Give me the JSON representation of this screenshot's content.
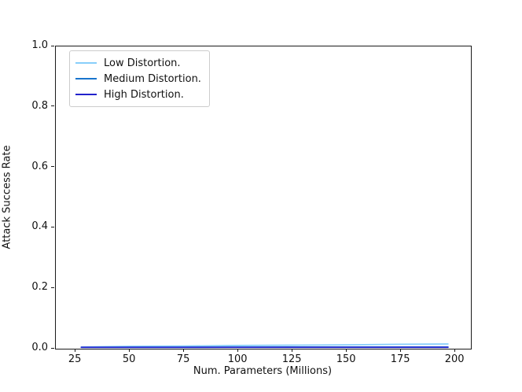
{
  "chart_data": {
    "type": "line",
    "title": "",
    "xlabel": "Num. Parameters (Millions)",
    "ylabel": "Attack Success Rate",
    "xlim": [
      15.9,
      207.2
    ],
    "ylim": [
      0.0,
      1.0
    ],
    "x_ticks": [
      25,
      50,
      75,
      100,
      125,
      150,
      175,
      200
    ],
    "y_ticks": [
      "0.0",
      "0.2",
      "0.4",
      "0.6",
      "0.8",
      "1.0"
    ],
    "grid": false,
    "legend_position": "upper left",
    "series": [
      {
        "name": "Low Distortion.",
        "color": "#87CEFA",
        "x": [
          28,
          50,
          75,
          100,
          125,
          150,
          175,
          197
        ],
        "y": [
          0.003,
          0.005,
          0.006,
          0.008,
          0.009,
          0.01,
          0.012,
          0.013
        ]
      },
      {
        "name": "Medium Distortion.",
        "color": "#1874CD",
        "x": [
          28,
          75,
          125,
          197
        ],
        "y": [
          0.002,
          0.002,
          0.003,
          0.003
        ]
      },
      {
        "name": "High Distortion.",
        "color": "#2222CC",
        "x": [
          28,
          75,
          125,
          197
        ],
        "y": [
          0.002,
          0.002,
          0.002,
          0.002
        ]
      }
    ]
  }
}
